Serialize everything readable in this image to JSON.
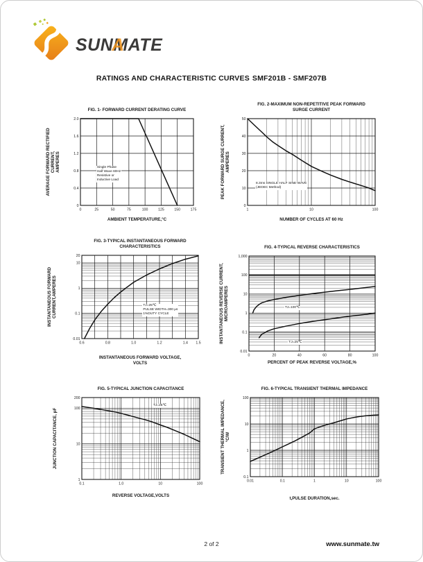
{
  "page": {
    "brand": "SUNMATE",
    "title": "RATINGS AND CHARACTERISTIC CURVES",
    "part_number": "SMF201B - SMF207B",
    "footer_page": "2 of 2",
    "footer_site": "www.sunmate.tw"
  },
  "colors": {
    "accent_orange": "#f0941c",
    "logo_gradient_start": "#f9b41c",
    "logo_gradient_end": "#e67e1a",
    "logo_green": "#afc93a",
    "ink": "#1a1a1a"
  },
  "chart_data": [
    {
      "type": "line",
      "fig": "FIG. 1- FORWARD CURRENT DERATING CURVE",
      "xlabel": "AMBIENT TEMPERATURE,°C",
      "ylabel": "AVERAGE FORWARD RECTIFIED CURRENT,\nAMPERES",
      "x": {
        "scale": "linear",
        "domain": [
          0,
          175
        ],
        "ticks": [
          0,
          25,
          50,
          75,
          100,
          125,
          150,
          175
        ],
        "tick_labels": [
          "0",
          "25",
          "50",
          "75",
          "100",
          "125",
          "150",
          "175"
        ]
      },
      "y": {
        "scale": "linear",
        "domain": [
          0,
          2
        ],
        "ticks": [
          0,
          0.4,
          0.8,
          1.2,
          1.6,
          2.0
        ],
        "tick_labels": [
          "0",
          "0.4",
          "0.8",
          "1.2",
          "1.6",
          "2.0"
        ]
      },
      "series": [
        {
          "name": "derating",
          "points": [
            [
              0,
              2
            ],
            [
              90,
              2
            ],
            [
              150,
              0
            ]
          ]
        }
      ],
      "annotations": [
        {
          "text": "Single Phase\nHalf Wave 60Hz\nResistive or\nInductive Load",
          "fx": 0.14,
          "fy": 0.545
        }
      ]
    },
    {
      "type": "line",
      "fig": "FIG. 2-MAXIMUM NON-REPETITIVE PEAK FORWARD\nSURGE CURRENT",
      "xlabel": "NUMBER OF CYCLES AT 60 Hz",
      "ylabel": "PEAK  FORWARD SURGE CURRENT,\nAMPERES",
      "x": {
        "scale": "log",
        "domain": [
          1,
          100
        ],
        "ticks": [
          1,
          10,
          100
        ],
        "tick_labels": [
          "1",
          "10",
          "100"
        ]
      },
      "y": {
        "scale": "linear",
        "domain": [
          0,
          50
        ],
        "ticks": [
          0,
          10,
          20,
          30,
          40,
          50
        ],
        "tick_labels": [
          "0",
          "10",
          "20",
          "30",
          "40",
          "50"
        ]
      },
      "series": [
        {
          "name": "surge",
          "points": [
            [
              1,
              50
            ],
            [
              1.3,
              46
            ],
            [
              1.7,
              42
            ],
            [
              2,
              39.5
            ],
            [
              2.5,
              36.5
            ],
            [
              3,
              34.5
            ],
            [
              4,
              31.5
            ],
            [
              5,
              29.5
            ],
            [
              7,
              26
            ],
            [
              10,
              22.5
            ],
            [
              15,
              19.5
            ],
            [
              20,
              17.5
            ],
            [
              30,
              15
            ],
            [
              40,
              13.5
            ],
            [
              60,
              11.5
            ],
            [
              80,
              10
            ],
            [
              100,
              8.5
            ]
          ]
        }
      ],
      "annotations": [
        {
          "text": "8.3ms SINGLE HALF SINE-WAVE\n(JEDEC Method)",
          "fx": 0.06,
          "fy": 0.73
        }
      ]
    },
    {
      "type": "line",
      "fig": "FIG. 3-TYPICAL INSTANTANEOUS FORWARD\nCHARACTERISTICS",
      "xlabel": "INSTANTANEOUS FORWARD VOLTAGE,\nVOLTS",
      "ylabel": "INSTANTANEOUS FORWARD\nCURRENT,AMPERES",
      "x": {
        "scale": "linear",
        "domain": [
          0.6,
          1.5
        ],
        "ticks": [
          0.6,
          0.7,
          0.8,
          0.9,
          1.0,
          1.1,
          1.2,
          1.3,
          1.4,
          1.5
        ],
        "tick_labels": [
          "0.6",
          "",
          "0.8",
          "",
          "1.0",
          "",
          "1.2",
          "",
          "1.4",
          "1.5"
        ]
      },
      "y": {
        "scale": "log",
        "domain": [
          0.01,
          20
        ],
        "ticks": [
          0.01,
          0.1,
          1,
          10,
          20
        ],
        "tick_labels": [
          "0.01",
          "0.1",
          "1",
          "10",
          "20"
        ]
      },
      "series": [
        {
          "name": "vf",
          "points": [
            [
              0.62,
              0.01
            ],
            [
              0.66,
              0.025
            ],
            [
              0.7,
              0.055
            ],
            [
              0.75,
              0.12
            ],
            [
              0.8,
              0.23
            ],
            [
              0.85,
              0.42
            ],
            [
              0.9,
              0.7
            ],
            [
              0.95,
              1.1
            ],
            [
              1.0,
              1.7
            ],
            [
              1.1,
              3.3
            ],
            [
              1.2,
              5.8
            ],
            [
              1.3,
              9.5
            ],
            [
              1.4,
              14
            ],
            [
              1.5,
              19
            ]
          ]
        }
      ],
      "annotations": [
        {
          "text": "TJ=25℃\nPULSE WIDTH=300 μs\n1%DUTY CYCLE",
          "fx": 0.52,
          "fy": 0.585
        }
      ]
    },
    {
      "type": "line",
      "fig": "FIG. 4-TYPICAL REVERSE CHARACTERISTICS",
      "xlabel": "PERCENT OF PEAK REVERSE VOLTAGE,%",
      "ylabel": "INSTANTANEOUS REVERSE CURRENT,\nMICROAMPERES",
      "x": {
        "scale": "linear",
        "domain": [
          0,
          100
        ],
        "ticks": [
          0,
          20,
          40,
          60,
          80,
          100
        ],
        "tick_labels": [
          "0",
          "20",
          "40",
          "60",
          "80",
          "100"
        ]
      },
      "y": {
        "scale": "log",
        "domain": [
          0.01,
          1000
        ],
        "ticks": [
          0.01,
          0.1,
          1,
          10,
          100,
          1000
        ],
        "tick_labels": [
          "0.01",
          "0.1",
          "1",
          "10",
          "100",
          "1,000"
        ],
        "emph": [
          100
        ]
      },
      "series": [
        {
          "name": "TJ=100C",
          "points": [
            [
              3,
              1
            ],
            [
              4,
              1.5
            ],
            [
              6,
              2.2
            ],
            [
              8,
              2.8
            ],
            [
              10,
              3.4
            ],
            [
              15,
              4.4
            ],
            [
              20,
              5.2
            ],
            [
              30,
              6.8
            ],
            [
              40,
              8.5
            ],
            [
              50,
              10.5
            ],
            [
              60,
              12.5
            ],
            [
              70,
              15
            ],
            [
              80,
              17.5
            ],
            [
              90,
              21
            ],
            [
              100,
              25
            ]
          ]
        },
        {
          "name": "TJ=25C",
          "points": [
            [
              8,
              0.05
            ],
            [
              10,
              0.075
            ],
            [
              15,
              0.115
            ],
            [
              20,
              0.15
            ],
            [
              30,
              0.21
            ],
            [
              40,
              0.28
            ],
            [
              50,
              0.36
            ],
            [
              60,
              0.45
            ],
            [
              70,
              0.55
            ],
            [
              80,
              0.68
            ],
            [
              90,
              0.82
            ],
            [
              100,
              1.0
            ]
          ]
        }
      ],
      "annotations": [
        {
          "text": "TJ=100℃",
          "fx": 0.28,
          "fy": 0.525
        },
        {
          "text": "TJ=25℃",
          "fx": 0.31,
          "fy": 0.89
        }
      ]
    },
    {
      "type": "line",
      "fig": "FIG. 5-TYPICAL JUNCTION CAPACITANCE",
      "xlabel": "REVERSE VOLTAGE,VOLTS",
      "ylabel": "JUNCTION CAPACITANCE, pF",
      "x": {
        "scale": "log",
        "domain": [
          0.1,
          100
        ],
        "ticks": [
          0.1,
          1,
          10,
          100
        ],
        "tick_labels": [
          "0.1",
          "1.0",
          "10",
          "100"
        ]
      },
      "y": {
        "scale": "log",
        "domain": [
          1,
          200
        ],
        "ticks": [
          1,
          10,
          100,
          200
        ],
        "tick_labels": [
          "1",
          "10",
          "100",
          "200"
        ]
      },
      "series": [
        {
          "name": "cj",
          "points": [
            [
              0.1,
              112
            ],
            [
              0.15,
              105
            ],
            [
              0.25,
              96
            ],
            [
              0.4,
              88
            ],
            [
              0.7,
              79
            ],
            [
              1,
              72
            ],
            [
              1.5,
              64
            ],
            [
              2.5,
              55
            ],
            [
              4,
              48
            ],
            [
              6,
              42
            ],
            [
              10,
              34
            ],
            [
              15,
              29
            ],
            [
              25,
              23
            ],
            [
              40,
              18.5
            ],
            [
              60,
              15
            ],
            [
              100,
              11.5
            ]
          ]
        }
      ],
      "annotations": [
        {
          "text": "TJ=25℃",
          "fx": 0.6,
          "fy": 0.08
        }
      ]
    },
    {
      "type": "line",
      "fig": "FIG. 6-TYPICAL TRANSIENT THERMAL IMPEDANCE",
      "xlabel": "t,PULSE DURATION,sec.",
      "ylabel": "TRANSIENT THERMAL IMPEDANCE,\n°C/W",
      "x": {
        "scale": "log",
        "domain": [
          0.01,
          100
        ],
        "ticks": [
          0.01,
          0.1,
          1,
          10,
          100
        ],
        "tick_labels": [
          "0.01",
          "0.1",
          "1",
          "10",
          "100"
        ]
      },
      "y": {
        "scale": "log",
        "domain": [
          0.1,
          100
        ],
        "ticks": [
          0.1,
          1,
          10,
          100
        ],
        "tick_labels": [
          "0.1",
          "1",
          "10",
          "100"
        ]
      },
      "series": [
        {
          "name": "zth",
          "points": [
            [
              0.01,
              0.38
            ],
            [
              0.015,
              0.47
            ],
            [
              0.025,
              0.62
            ],
            [
              0.04,
              0.8
            ],
            [
              0.07,
              1.1
            ],
            [
              0.1,
              1.35
            ],
            [
              0.15,
              1.7
            ],
            [
              0.25,
              2.3
            ],
            [
              0.4,
              3.1
            ],
            [
              0.7,
              4.5
            ],
            [
              1,
              6.5
            ],
            [
              1.5,
              7.8
            ],
            [
              2.5,
              9.5
            ],
            [
              4,
              11
            ],
            [
              7,
              13.5
            ],
            [
              10,
              15.5
            ],
            [
              15,
              17
            ],
            [
              25,
              19
            ],
            [
              40,
              20.5
            ],
            [
              70,
              21.5
            ],
            [
              100,
              22
            ]
          ]
        }
      ],
      "annotations": []
    }
  ]
}
